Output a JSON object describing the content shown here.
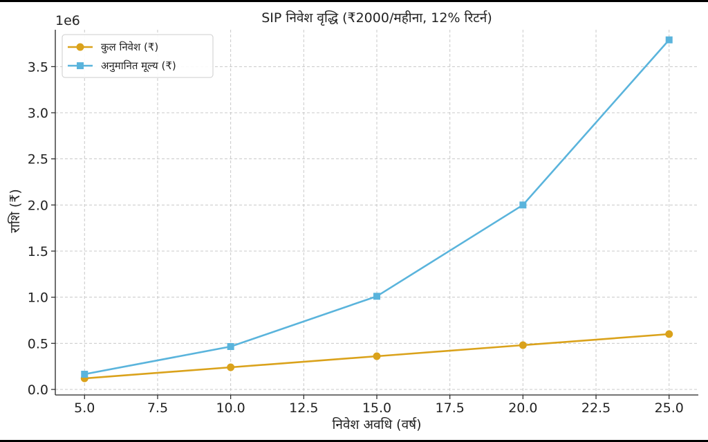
{
  "chart_data": {
    "type": "line",
    "title": "SIP निवेश वृद्धि (₹2000/महीना, 12% रिटर्न)",
    "xlabel": "निवेश अवधि (वर्ष)",
    "ylabel": "राशि (₹)",
    "y_offset_label": "1e6",
    "x": [
      5,
      10,
      15,
      20,
      25
    ],
    "xlim": [
      4.0,
      26.0
    ],
    "ylim": [
      -0.06,
      3.9
    ],
    "x_ticks": [
      5.0,
      7.5,
      10.0,
      12.5,
      15.0,
      17.5,
      20.0,
      22.5,
      25.0
    ],
    "x_tick_labels": [
      "5.0",
      "7.5",
      "10.0",
      "12.5",
      "15.0",
      "17.5",
      "20.0",
      "22.5",
      "25.0"
    ],
    "y_ticks": [
      0.0,
      0.5,
      1.0,
      1.5,
      2.0,
      2.5,
      3.0,
      3.5
    ],
    "y_tick_labels": [
      "0.0",
      "0.5",
      "1.0",
      "1.5",
      "2.0",
      "2.5",
      "3.0",
      "3.5"
    ],
    "grid": true,
    "legend_position": "top-left",
    "series": [
      {
        "name": "कुल निवेश (₹)",
        "color": "#DAA21B",
        "marker": "circle",
        "values": [
          0.12,
          0.24,
          0.36,
          0.48,
          0.6
        ]
      },
      {
        "name": "अनुमानित मूल्य (₹)",
        "color": "#5AB4DC",
        "marker": "square",
        "values": [
          0.165,
          0.465,
          1.01,
          2.0,
          3.79
        ]
      }
    ]
  }
}
